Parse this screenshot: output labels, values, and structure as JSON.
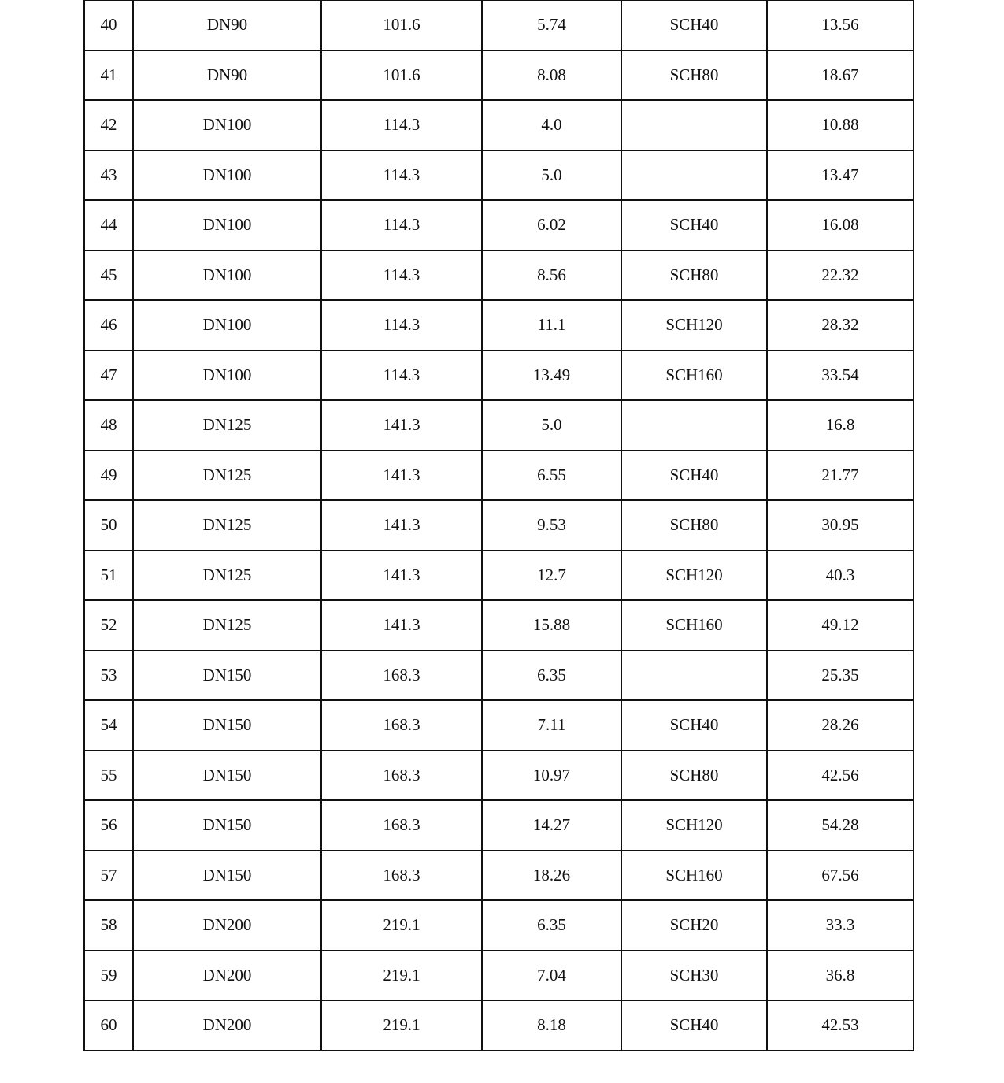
{
  "table": {
    "rows": [
      [
        "40",
        "DN90",
        "101.6",
        "5.74",
        "SCH40",
        "13.56"
      ],
      [
        "41",
        "DN90",
        "101.6",
        "8.08",
        "SCH80",
        "18.67"
      ],
      [
        "42",
        "DN100",
        "114.3",
        "4.0",
        "",
        "10.88"
      ],
      [
        "43",
        "DN100",
        "114.3",
        "5.0",
        "",
        "13.47"
      ],
      [
        "44",
        "DN100",
        "114.3",
        "6.02",
        "SCH40",
        "16.08"
      ],
      [
        "45",
        "DN100",
        "114.3",
        "8.56",
        "SCH80",
        "22.32"
      ],
      [
        "46",
        "DN100",
        "114.3",
        "11.1",
        "SCH120",
        "28.32"
      ],
      [
        "47",
        "DN100",
        "114.3",
        "13.49",
        "SCH160",
        "33.54"
      ],
      [
        "48",
        "DN125",
        "141.3",
        "5.0",
        "",
        "16.8"
      ],
      [
        "49",
        "DN125",
        "141.3",
        "6.55",
        "SCH40",
        "21.77"
      ],
      [
        "50",
        "DN125",
        "141.3",
        "9.53",
        "SCH80",
        "30.95"
      ],
      [
        "51",
        "DN125",
        "141.3",
        "12.7",
        "SCH120",
        "40.3"
      ],
      [
        "52",
        "DN125",
        "141.3",
        "15.88",
        "SCH160",
        "49.12"
      ],
      [
        "53",
        "DN150",
        "168.3",
        "6.35",
        "",
        "25.35"
      ],
      [
        "54",
        "DN150",
        "168.3",
        "7.11",
        "SCH40",
        "28.26"
      ],
      [
        "55",
        "DN150",
        "168.3",
        "10.97",
        "SCH80",
        "42.56"
      ],
      [
        "56",
        "DN150",
        "168.3",
        "14.27",
        "SCH120",
        "54.28"
      ],
      [
        "57",
        "DN150",
        "168.3",
        "18.26",
        "SCH160",
        "67.56"
      ],
      [
        "58",
        "DN200",
        "219.1",
        "6.35",
        "SCH20",
        "33.3"
      ],
      [
        "59",
        "DN200",
        "219.1",
        "7.04",
        "SCH30",
        "36.8"
      ],
      [
        "60",
        "DN200",
        "219.1",
        "8.18",
        "SCH40",
        "42.53"
      ]
    ]
  }
}
